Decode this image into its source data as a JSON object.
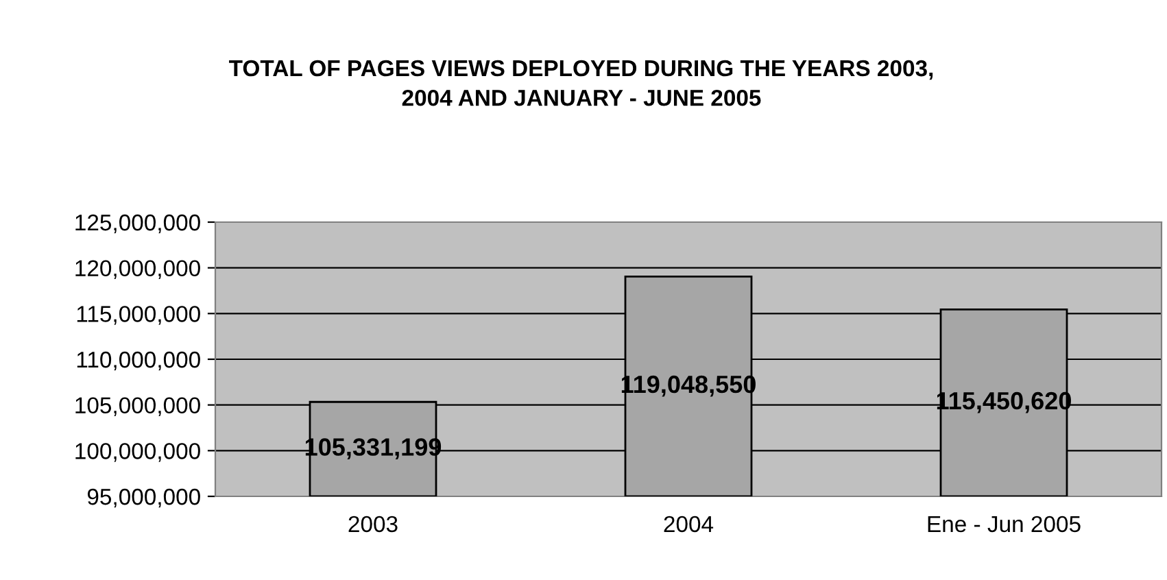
{
  "chart_data": {
    "type": "bar",
    "title": "TOTAL OF PAGES VIEWS DEPLOYED DURING THE YEARS 2003,\n2004 AND JANUARY - JUNE 2005",
    "categories": [
      "2003",
      "2004",
      "Ene - Jun 2005"
    ],
    "values": [
      105331199,
      119048550,
      115450620
    ],
    "color": "#a6a6a6",
    "ylim": [
      95000000,
      125000000
    ],
    "yticks": [
      {
        "value": 95000000,
        "label": "95,000,000"
      },
      {
        "value": 100000000,
        "label": "100,000,000"
      },
      {
        "value": 105000000,
        "label": "105,000,000"
      },
      {
        "value": 110000000,
        "label": "110,000,000"
      },
      {
        "value": 115000000,
        "label": "115,000,000"
      },
      {
        "value": 120000000,
        "label": "120,000,000"
      },
      {
        "value": 125000000,
        "label": "125,000,000"
      }
    ],
    "value_labels": [
      "105,331,199",
      "119,048,550",
      "115,450,620"
    ],
    "grid": "y",
    "legend": false
  }
}
